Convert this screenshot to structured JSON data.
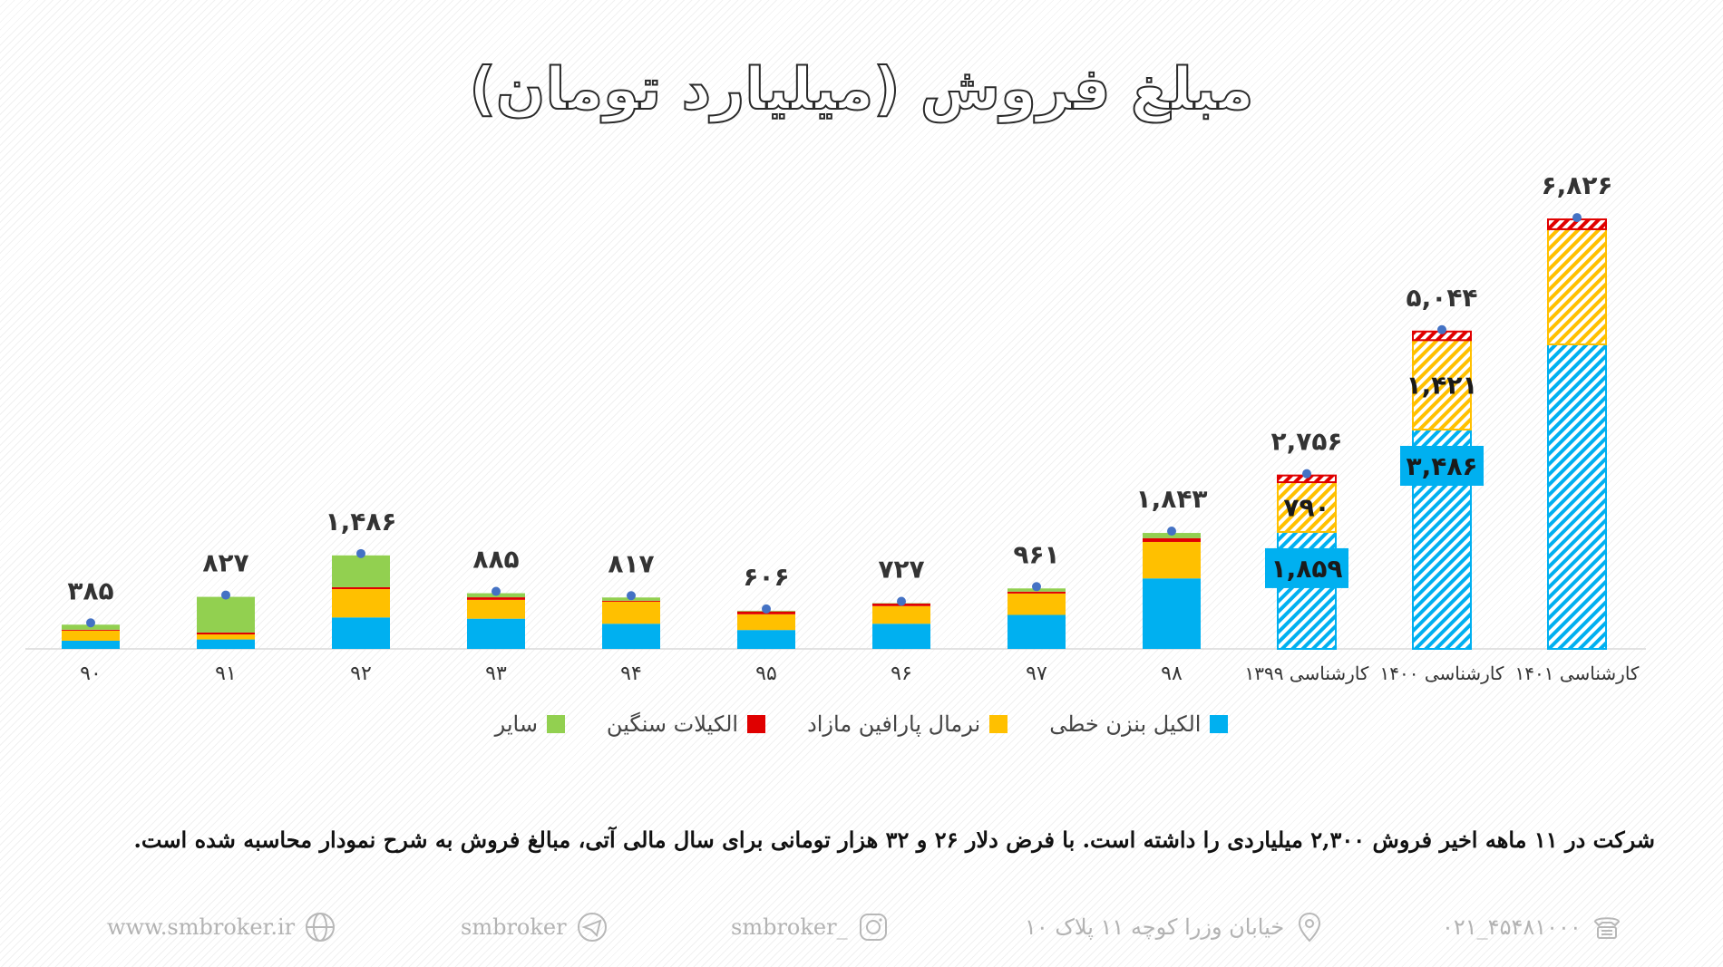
{
  "chart_data": {
    "type": "bar",
    "title": "مبلغ فروش (میلیارد تومان)",
    "categories": [
      "۹۰",
      "۹۱",
      "۹۲",
      "۹۳",
      "۹۴",
      "۹۵",
      "۹۶",
      "۹۷",
      "۹۸",
      "کارشناسی ۱۳۹۹",
      "کارشناسی ۱۴۰۰",
      "کارشناسی ۱۴۰۱"
    ],
    "totals": [
      385,
      827,
      1486,
      885,
      817,
      606,
      727,
      961,
      1843,
      2756,
      5044,
      6826
    ],
    "total_labels": [
      "۳۸۵",
      "۸۲۷",
      "۱,۴۸۶",
      "۸۸۵",
      "۸۱۷",
      "۶۰۶",
      "۷۲۷",
      "۹۶۱",
      "۱,۸۴۳",
      "۲,۷۵۶",
      "۵,۰۴۴",
      "۶,۸۲۶"
    ],
    "series": [
      {
        "name": "الکیل بنزن خطی",
        "color": "#00b0f0",
        "values": [
          130,
          150,
          500,
          480,
          400,
          300,
          400,
          540,
          1120,
          1859,
          3486,
          4840
        ],
        "value_labels": [
          "",
          "",
          "",
          "",
          "",
          "",
          "",
          "",
          "",
          "۱,۸۵۹",
          "۳,۴۸۶",
          ""
        ]
      },
      {
        "name": "نرمال پارافین مازاد",
        "color": "#ffc000",
        "values": [
          160,
          80,
          450,
          300,
          350,
          250,
          280,
          340,
          580,
          790,
          1421,
          1830
        ],
        "value_labels": [
          "",
          "",
          "",
          "",
          "",
          "",
          "",
          "",
          "",
          "۷۹۰",
          "۱,۴۲۱",
          ""
        ]
      },
      {
        "name": "الکیلات سنگین",
        "color": "#e00000",
        "values": [
          15,
          30,
          30,
          40,
          15,
          45,
          40,
          30,
          60,
          107,
          137,
          156
        ],
        "value_labels": [
          "",
          "",
          "",
          "",
          "",
          "",
          "",
          "",
          "",
          "",
          "",
          ""
        ]
      },
      {
        "name": "سایر",
        "color": "#92d050",
        "values": [
          80,
          567,
          506,
          65,
          52,
          11,
          7,
          51,
          83,
          0,
          0,
          0
        ],
        "value_labels": [
          "",
          "",
          "",
          "",
          "",
          "",
          "",
          "",
          "",
          "",
          "",
          ""
        ]
      }
    ],
    "forecast": [
      false,
      false,
      false,
      false,
      false,
      false,
      false,
      false,
      false,
      true,
      true,
      true
    ],
    "ylim": [
      0,
      7000
    ],
    "legend_position": "bottom",
    "grid": false
  },
  "note": "شرکت در ۱۱ ماهه اخیر فروش ۲,۳۰۰ میلیاردی را داشته است. با فرض دلار ۲۶ و ۳۲ هزار تومانی برای سال مالی آتی، مبالغ فروش به شرح نمودار محاسبه شده است.",
  "footer": {
    "website": "www.smbroker.ir",
    "telegram": "smbroker",
    "instagram": "smbroker_",
    "address": "خیابان وزرا کوچه ۱۱ پلاک ۱۰",
    "phone": "۰۲۱_۴۵۴۸۱۰۰۰"
  }
}
